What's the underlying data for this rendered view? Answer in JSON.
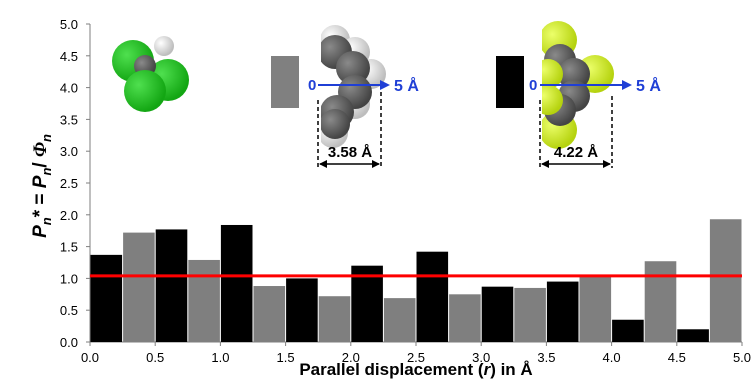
{
  "chart_data": {
    "type": "bar",
    "xlabel_parts": [
      "Parallel displacement (",
      "r",
      ") in Å"
    ],
    "ylabel_parts": [
      "P",
      "n",
      "* = ",
      "P",
      "n",
      "/ ",
      "Φ",
      "n"
    ],
    "xlim": [
      0.0,
      5.0
    ],
    "ylim": [
      0.0,
      5.0
    ],
    "x_ticks": [
      "0.0",
      "0.5",
      "1.0",
      "1.5",
      "2.0",
      "2.5",
      "3.0",
      "3.5",
      "4.0",
      "4.5",
      "5.0"
    ],
    "y_ticks": [
      "0.0",
      "0.5",
      "1.0",
      "1.5",
      "2.0",
      "2.5",
      "3.0",
      "3.5",
      "4.0",
      "4.5",
      "5.0"
    ],
    "bin_width": 0.25,
    "series": [
      {
        "color": "#000000",
        "x": [
          0.0,
          0.5,
          1.0,
          1.5,
          2.0,
          2.5,
          3.0,
          3.5,
          4.0,
          4.5
        ],
        "values": [
          1.37,
          1.77,
          1.84,
          1.0,
          1.2,
          1.42,
          0.87,
          0.95,
          0.35,
          0.2
        ]
      },
      {
        "color": "#7f7f7f",
        "x": [
          0.25,
          0.75,
          1.25,
          1.75,
          2.25,
          2.75,
          3.25,
          3.75,
          4.25,
          4.75
        ],
        "values": [
          1.72,
          1.29,
          0.88,
          0.72,
          0.69,
          0.75,
          0.85,
          1.03,
          1.27,
          1.93
        ]
      }
    ],
    "reference_line": {
      "y": 1.04,
      "color": "#ff0000"
    },
    "annotations": {
      "arrow1_start": "0",
      "arrow1_end": "5 Å",
      "width1": "3.58 Å",
      "arrow2_start": "0",
      "arrow2_end": "5 Å",
      "width2": "4.22 Å"
    },
    "colors": {
      "arrow": "#1f3fd6",
      "chlorine": "#1db31d",
      "fluorine": "#c9e81a",
      "carbon": "#5a5a5a",
      "hydrogen": "#e4e4e4"
    },
    "grid": false,
    "legend": "none"
  }
}
